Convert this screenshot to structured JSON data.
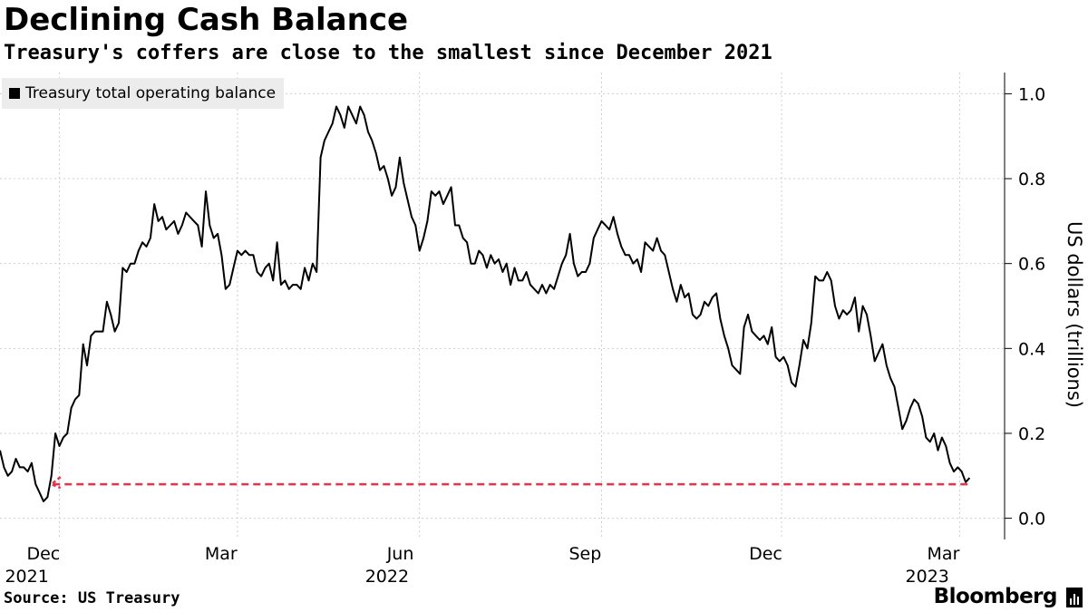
{
  "title": "Declining Cash Balance",
  "subtitle": "Treasury's coffers are close to the smallest since December 2021",
  "source": "Source: US Treasury",
  "brand": "Bloomberg",
  "chart_data": {
    "type": "line",
    "title": "Declining Cash Balance",
    "subtitle": "Treasury's coffers are close to the smallest since December 2021",
    "ylabel": "US dollars (trillions)",
    "ylim": [
      -0.05,
      1.05
    ],
    "y_ticks": [
      {
        "v": 0.0,
        "label": "0.0"
      },
      {
        "v": 0.2,
        "label": "0.2"
      },
      {
        "v": 0.4,
        "label": "0.4"
      },
      {
        "v": 0.6,
        "label": "0.6"
      },
      {
        "v": 0.8,
        "label": "0.8"
      },
      {
        "v": 1.0,
        "label": "1.0"
      }
    ],
    "x_ticks": [
      {
        "date": "2021-12-01",
        "label": "Dec",
        "year": "2021"
      },
      {
        "date": "2022-03-01",
        "label": "Mar",
        "year": ""
      },
      {
        "date": "2022-06-01",
        "label": "Jun",
        "year": "2022"
      },
      {
        "date": "2022-09-01",
        "label": "Sep",
        "year": ""
      },
      {
        "date": "2022-12-01",
        "label": "Dec",
        "year": ""
      },
      {
        "date": "2023-03-01",
        "label": "Mar",
        "year": "2023"
      }
    ],
    "xlim": [
      "2021-11-01",
      "2023-03-20"
    ],
    "grid": true,
    "legend": {
      "position": "top-left",
      "entries": [
        "Treasury total operating balance"
      ]
    },
    "series": [
      {
        "name": "Treasury total operating balance",
        "color": "#000000",
        "points": [
          [
            "2021-11-01",
            0.16
          ],
          [
            "2021-11-03",
            0.12
          ],
          [
            "2021-11-05",
            0.1
          ],
          [
            "2021-11-07",
            0.11
          ],
          [
            "2021-11-09",
            0.14
          ],
          [
            "2021-11-11",
            0.12
          ],
          [
            "2021-11-13",
            0.12
          ],
          [
            "2021-11-15",
            0.11
          ],
          [
            "2021-11-17",
            0.13
          ],
          [
            "2021-11-19",
            0.08
          ],
          [
            "2021-11-21",
            0.06
          ],
          [
            "2021-11-23",
            0.04
          ],
          [
            "2021-11-25",
            0.05
          ],
          [
            "2021-11-27",
            0.1
          ],
          [
            "2021-11-29",
            0.2
          ],
          [
            "2021-12-01",
            0.17
          ],
          [
            "2021-12-03",
            0.19
          ],
          [
            "2021-12-05",
            0.2
          ],
          [
            "2021-12-07",
            0.26
          ],
          [
            "2021-12-09",
            0.28
          ],
          [
            "2021-12-11",
            0.29
          ],
          [
            "2021-12-13",
            0.41
          ],
          [
            "2021-12-15",
            0.36
          ],
          [
            "2021-12-17",
            0.43
          ],
          [
            "2021-12-19",
            0.44
          ],
          [
            "2021-12-21",
            0.44
          ],
          [
            "2021-12-23",
            0.44
          ],
          [
            "2021-12-25",
            0.51
          ],
          [
            "2021-12-27",
            0.48
          ],
          [
            "2021-12-29",
            0.44
          ],
          [
            "2021-12-31",
            0.46
          ],
          [
            "2022-01-02",
            0.59
          ],
          [
            "2022-01-04",
            0.58
          ],
          [
            "2022-01-06",
            0.6
          ],
          [
            "2022-01-08",
            0.6
          ],
          [
            "2022-01-10",
            0.63
          ],
          [
            "2022-01-12",
            0.65
          ],
          [
            "2022-01-14",
            0.64
          ],
          [
            "2022-01-16",
            0.66
          ],
          [
            "2022-01-18",
            0.74
          ],
          [
            "2022-01-20",
            0.7
          ],
          [
            "2022-01-22",
            0.71
          ],
          [
            "2022-01-24",
            0.68
          ],
          [
            "2022-01-26",
            0.69
          ],
          [
            "2022-01-28",
            0.7
          ],
          [
            "2022-01-30",
            0.67
          ],
          [
            "2022-02-01",
            0.69
          ],
          [
            "2022-02-03",
            0.72
          ],
          [
            "2022-02-05",
            0.71
          ],
          [
            "2022-02-07",
            0.7
          ],
          [
            "2022-02-09",
            0.69
          ],
          [
            "2022-02-11",
            0.64
          ],
          [
            "2022-02-13",
            0.77
          ],
          [
            "2022-02-15",
            0.69
          ],
          [
            "2022-02-17",
            0.66
          ],
          [
            "2022-02-19",
            0.67
          ],
          [
            "2022-02-21",
            0.62
          ],
          [
            "2022-02-23",
            0.54
          ],
          [
            "2022-02-25",
            0.55
          ],
          [
            "2022-02-27",
            0.59
          ],
          [
            "2022-03-01",
            0.63
          ],
          [
            "2022-03-03",
            0.62
          ],
          [
            "2022-03-05",
            0.63
          ],
          [
            "2022-03-07",
            0.62
          ],
          [
            "2022-03-09",
            0.62
          ],
          [
            "2022-03-11",
            0.58
          ],
          [
            "2022-03-13",
            0.57
          ],
          [
            "2022-03-15",
            0.59
          ],
          [
            "2022-03-17",
            0.6
          ],
          [
            "2022-03-19",
            0.56
          ],
          [
            "2022-03-21",
            0.65
          ],
          [
            "2022-03-23",
            0.55
          ],
          [
            "2022-03-25",
            0.56
          ],
          [
            "2022-03-27",
            0.54
          ],
          [
            "2022-03-29",
            0.55
          ],
          [
            "2022-03-31",
            0.55
          ],
          [
            "2022-04-02",
            0.54
          ],
          [
            "2022-04-04",
            0.59
          ],
          [
            "2022-04-06",
            0.56
          ],
          [
            "2022-04-08",
            0.6
          ],
          [
            "2022-04-10",
            0.58
          ],
          [
            "2022-04-12",
            0.85
          ],
          [
            "2022-04-14",
            0.89
          ],
          [
            "2022-04-16",
            0.91
          ],
          [
            "2022-04-18",
            0.93
          ],
          [
            "2022-04-20",
            0.97
          ],
          [
            "2022-04-22",
            0.95
          ],
          [
            "2022-04-24",
            0.92
          ],
          [
            "2022-04-26",
            0.97
          ],
          [
            "2022-04-28",
            0.95
          ],
          [
            "2022-04-30",
            0.93
          ],
          [
            "2022-05-02",
            0.97
          ],
          [
            "2022-05-04",
            0.95
          ],
          [
            "2022-05-06",
            0.91
          ],
          [
            "2022-05-08",
            0.89
          ],
          [
            "2022-05-10",
            0.86
          ],
          [
            "2022-05-12",
            0.82
          ],
          [
            "2022-05-14",
            0.83
          ],
          [
            "2022-05-16",
            0.8
          ],
          [
            "2022-05-18",
            0.76
          ],
          [
            "2022-05-20",
            0.78
          ],
          [
            "2022-05-22",
            0.85
          ],
          [
            "2022-05-24",
            0.79
          ],
          [
            "2022-05-26",
            0.75
          ],
          [
            "2022-05-28",
            0.71
          ],
          [
            "2022-05-30",
            0.69
          ],
          [
            "2022-06-01",
            0.63
          ],
          [
            "2022-06-03",
            0.66
          ],
          [
            "2022-06-05",
            0.7
          ],
          [
            "2022-06-07",
            0.77
          ],
          [
            "2022-06-09",
            0.76
          ],
          [
            "2022-06-11",
            0.77
          ],
          [
            "2022-06-13",
            0.74
          ],
          [
            "2022-06-15",
            0.76
          ],
          [
            "2022-06-17",
            0.78
          ],
          [
            "2022-06-19",
            0.69
          ],
          [
            "2022-06-21",
            0.69
          ],
          [
            "2022-06-23",
            0.66
          ],
          [
            "2022-06-25",
            0.65
          ],
          [
            "2022-06-27",
            0.6
          ],
          [
            "2022-06-29",
            0.6
          ],
          [
            "2022-07-01",
            0.63
          ],
          [
            "2022-07-03",
            0.62
          ],
          [
            "2022-07-05",
            0.59
          ],
          [
            "2022-07-07",
            0.62
          ],
          [
            "2022-07-09",
            0.6
          ],
          [
            "2022-07-11",
            0.61
          ],
          [
            "2022-07-13",
            0.58
          ],
          [
            "2022-07-15",
            0.6
          ],
          [
            "2022-07-17",
            0.55
          ],
          [
            "2022-07-19",
            0.59
          ],
          [
            "2022-07-21",
            0.56
          ],
          [
            "2022-07-23",
            0.56
          ],
          [
            "2022-07-25",
            0.58
          ],
          [
            "2022-07-27",
            0.55
          ],
          [
            "2022-07-29",
            0.54
          ],
          [
            "2022-07-31",
            0.53
          ],
          [
            "2022-08-02",
            0.55
          ],
          [
            "2022-08-04",
            0.53
          ],
          [
            "2022-08-06",
            0.55
          ],
          [
            "2022-08-08",
            0.54
          ],
          [
            "2022-08-10",
            0.57
          ],
          [
            "2022-08-12",
            0.6
          ],
          [
            "2022-08-14",
            0.62
          ],
          [
            "2022-08-16",
            0.67
          ],
          [
            "2022-08-18",
            0.6
          ],
          [
            "2022-08-20",
            0.57
          ],
          [
            "2022-08-22",
            0.58
          ],
          [
            "2022-08-24",
            0.58
          ],
          [
            "2022-08-26",
            0.6
          ],
          [
            "2022-08-28",
            0.66
          ],
          [
            "2022-08-30",
            0.68
          ],
          [
            "2022-09-01",
            0.7
          ],
          [
            "2022-09-03",
            0.69
          ],
          [
            "2022-09-05",
            0.68
          ],
          [
            "2022-09-07",
            0.71
          ],
          [
            "2022-09-09",
            0.67
          ],
          [
            "2022-09-11",
            0.64
          ],
          [
            "2022-09-13",
            0.62
          ],
          [
            "2022-09-15",
            0.62
          ],
          [
            "2022-09-17",
            0.6
          ],
          [
            "2022-09-19",
            0.61
          ],
          [
            "2022-09-21",
            0.58
          ],
          [
            "2022-09-23",
            0.65
          ],
          [
            "2022-09-25",
            0.64
          ],
          [
            "2022-09-27",
            0.63
          ],
          [
            "2022-09-29",
            0.66
          ],
          [
            "2022-10-01",
            0.63
          ],
          [
            "2022-10-03",
            0.62
          ],
          [
            "2022-10-05",
            0.58
          ],
          [
            "2022-10-07",
            0.54
          ],
          [
            "2022-10-09",
            0.51
          ],
          [
            "2022-10-11",
            0.55
          ],
          [
            "2022-10-13",
            0.52
          ],
          [
            "2022-10-15",
            0.53
          ],
          [
            "2022-10-17",
            0.48
          ],
          [
            "2022-10-19",
            0.47
          ],
          [
            "2022-10-21",
            0.48
          ],
          [
            "2022-10-23",
            0.51
          ],
          [
            "2022-10-25",
            0.5
          ],
          [
            "2022-10-27",
            0.52
          ],
          [
            "2022-10-29",
            0.53
          ],
          [
            "2022-10-31",
            0.47
          ],
          [
            "2022-11-02",
            0.43
          ],
          [
            "2022-11-04",
            0.4
          ],
          [
            "2022-11-06",
            0.36
          ],
          [
            "2022-11-08",
            0.35
          ],
          [
            "2022-11-10",
            0.34
          ],
          [
            "2022-11-12",
            0.45
          ],
          [
            "2022-11-14",
            0.48
          ],
          [
            "2022-11-16",
            0.44
          ],
          [
            "2022-11-18",
            0.43
          ],
          [
            "2022-11-20",
            0.42
          ],
          [
            "2022-11-22",
            0.43
          ],
          [
            "2022-11-24",
            0.41
          ],
          [
            "2022-11-26",
            0.45
          ],
          [
            "2022-11-28",
            0.38
          ],
          [
            "2022-11-30",
            0.37
          ],
          [
            "2022-12-02",
            0.38
          ],
          [
            "2022-12-04",
            0.36
          ],
          [
            "2022-12-06",
            0.32
          ],
          [
            "2022-12-08",
            0.31
          ],
          [
            "2022-12-10",
            0.36
          ],
          [
            "2022-12-12",
            0.42
          ],
          [
            "2022-12-14",
            0.4
          ],
          [
            "2022-12-16",
            0.46
          ],
          [
            "2022-12-18",
            0.57
          ],
          [
            "2022-12-20",
            0.56
          ],
          [
            "2022-12-22",
            0.56
          ],
          [
            "2022-12-24",
            0.58
          ],
          [
            "2022-12-26",
            0.56
          ],
          [
            "2022-12-28",
            0.5
          ],
          [
            "2022-12-30",
            0.47
          ],
          [
            "2023-01-01",
            0.49
          ],
          [
            "2023-01-03",
            0.48
          ],
          [
            "2023-01-05",
            0.49
          ],
          [
            "2023-01-07",
            0.52
          ],
          [
            "2023-01-09",
            0.44
          ],
          [
            "2023-01-11",
            0.5
          ],
          [
            "2023-01-13",
            0.48
          ],
          [
            "2023-01-15",
            0.43
          ],
          [
            "2023-01-17",
            0.37
          ],
          [
            "2023-01-19",
            0.39
          ],
          [
            "2023-01-21",
            0.41
          ],
          [
            "2023-01-23",
            0.36
          ],
          [
            "2023-01-25",
            0.33
          ],
          [
            "2023-01-27",
            0.31
          ],
          [
            "2023-01-29",
            0.26
          ],
          [
            "2023-01-31",
            0.21
          ],
          [
            "2023-02-02",
            0.23
          ],
          [
            "2023-02-04",
            0.26
          ],
          [
            "2023-02-06",
            0.28
          ],
          [
            "2023-02-08",
            0.27
          ],
          [
            "2023-02-10",
            0.24
          ],
          [
            "2023-02-12",
            0.19
          ],
          [
            "2023-02-14",
            0.18
          ],
          [
            "2023-02-16",
            0.2
          ],
          [
            "2023-02-18",
            0.16
          ],
          [
            "2023-02-20",
            0.19
          ],
          [
            "2023-02-22",
            0.17
          ],
          [
            "2023-02-24",
            0.13
          ],
          [
            "2023-02-26",
            0.11
          ],
          [
            "2023-02-28",
            0.12
          ],
          [
            "2023-03-02",
            0.11
          ],
          [
            "2023-03-04",
            0.085
          ],
          [
            "2023-03-06",
            0.095
          ]
        ]
      }
    ],
    "annotation": {
      "type": "dashed-line-with-arrow",
      "color": "#e8334a",
      "from": [
        "2023-03-05",
        0.08
      ],
      "to": [
        "2021-11-27",
        0.08
      ]
    }
  }
}
